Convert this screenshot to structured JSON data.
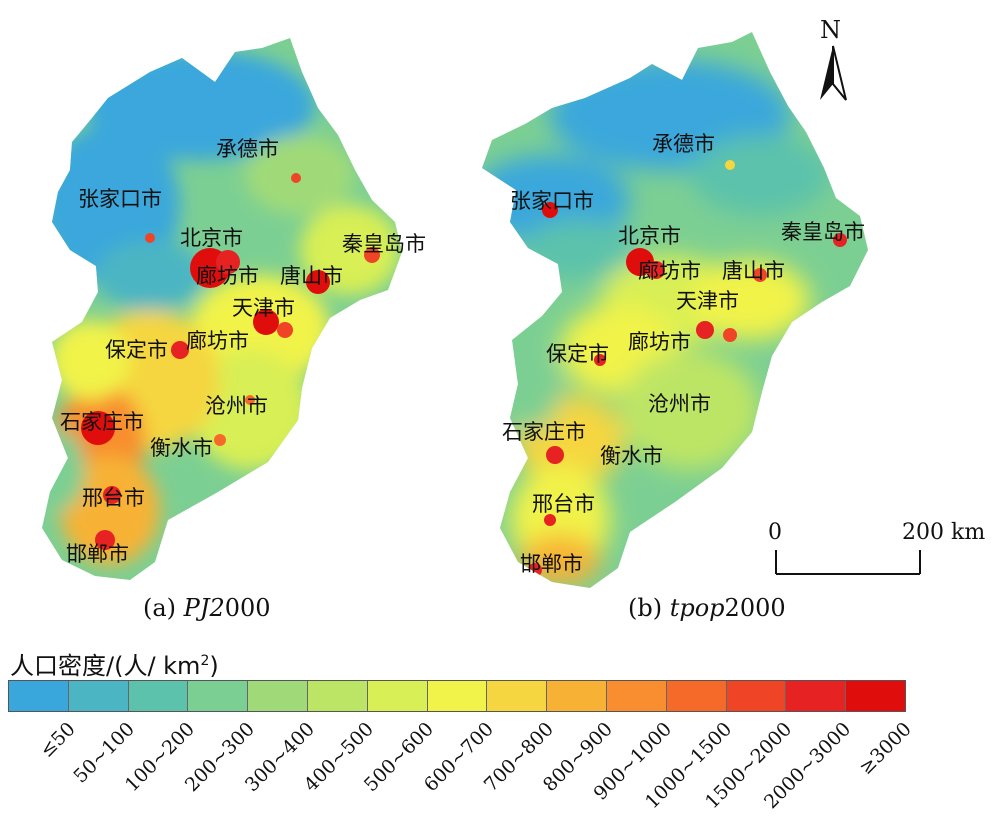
{
  "panels": [
    {
      "caption_prefix": "(a) ",
      "caption_italic": "PJ2",
      "caption_suffix": "000",
      "cities": [
        "承德市",
        "张家口市",
        "北京市",
        "秦皇岛市",
        "廊坊市",
        "唐山市",
        "天津市",
        "保定市",
        "廊坊市",
        "沧州市",
        "石家庄市",
        "衡水市",
        "邢台市",
        "邯郸市"
      ]
    },
    {
      "caption_prefix": "(b) ",
      "caption_italic": "tpop",
      "caption_suffix": "2000",
      "cities": [
        "承德市",
        "张家口市",
        "北京市",
        "秦皇岛市",
        "廊坊市",
        "唐山市",
        "天津市",
        "保定市",
        "廊坊市",
        "沧州市",
        "石家庄市",
        "衡水市",
        "邢台市",
        "邯郸市"
      ]
    }
  ],
  "north_arrow": {
    "label": "N"
  },
  "scale_bar": {
    "start": "0",
    "end": "200 km"
  },
  "legend": {
    "title_main": "人口密度/(人/ km",
    "title_sup": "2",
    "title_end": ")",
    "classes": [
      {
        "label": "≤50",
        "color": "#3aa7dc"
      },
      {
        "label": "50~100",
        "color": "#4bb5c3"
      },
      {
        "label": "100~200",
        "color": "#5cc2ab"
      },
      {
        "label": "200~300",
        "color": "#7ccf93"
      },
      {
        "label": "300~400",
        "color": "#a0da78"
      },
      {
        "label": "400~500",
        "color": "#bde565"
      },
      {
        "label": "500~600",
        "color": "#d8ef55"
      },
      {
        "label": "600~700",
        "color": "#f1f34a"
      },
      {
        "label": "700~800",
        "color": "#f5d640"
      },
      {
        "label": "800~900",
        "color": "#f7b236"
      },
      {
        "label": "900~1000",
        "color": "#f88e2f"
      },
      {
        "label": "1000~1500",
        "color": "#f66a29"
      },
      {
        "label": "1500~2000",
        "color": "#f04426"
      },
      {
        "label": "2000~3000",
        "color": "#e62222"
      },
      {
        "label": "≥3000",
        "color": "#e00d0d"
      }
    ]
  }
}
